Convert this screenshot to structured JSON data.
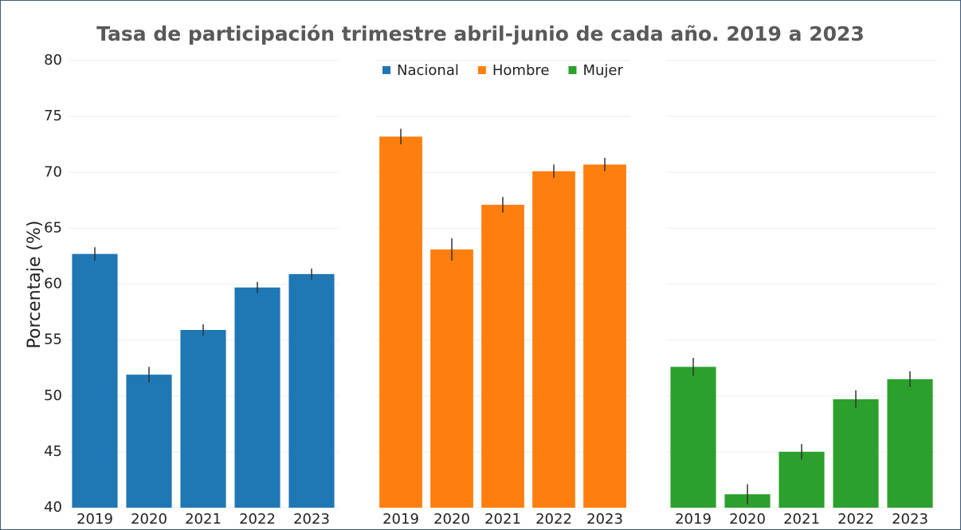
{
  "chart_data": {
    "type": "bar",
    "title": "Tasa de participación trimestre abril-junio de cada año. 2019 a 2023",
    "y_label": "Porcentaje (%)",
    "categories": [
      "2019",
      "2020",
      "2021",
      "2022",
      "2023"
    ],
    "series": [
      {
        "name": "Nacional",
        "color": "#1f77b4",
        "values": [
          62.7,
          51.9,
          55.9,
          59.7,
          60.9
        ],
        "errors": [
          0.6,
          0.7,
          0.5,
          0.5,
          0.5
        ]
      },
      {
        "name": "Hombre",
        "color": "#ff7f0e",
        "values": [
          73.2,
          63.1,
          67.1,
          70.1,
          70.7
        ],
        "errors": [
          0.7,
          1.0,
          0.7,
          0.6,
          0.6
        ]
      },
      {
        "name": "Mujer",
        "color": "#2ca02c",
        "values": [
          52.6,
          41.2,
          45.0,
          49.7,
          51.5
        ],
        "errors": [
          0.8,
          0.9,
          0.7,
          0.8,
          0.7
        ]
      }
    ],
    "ylim": [
      40,
      80
    ],
    "yticks": [
      40,
      45,
      50,
      55,
      60,
      65,
      70,
      75,
      80
    ],
    "grid": true,
    "legend": "top"
  }
}
